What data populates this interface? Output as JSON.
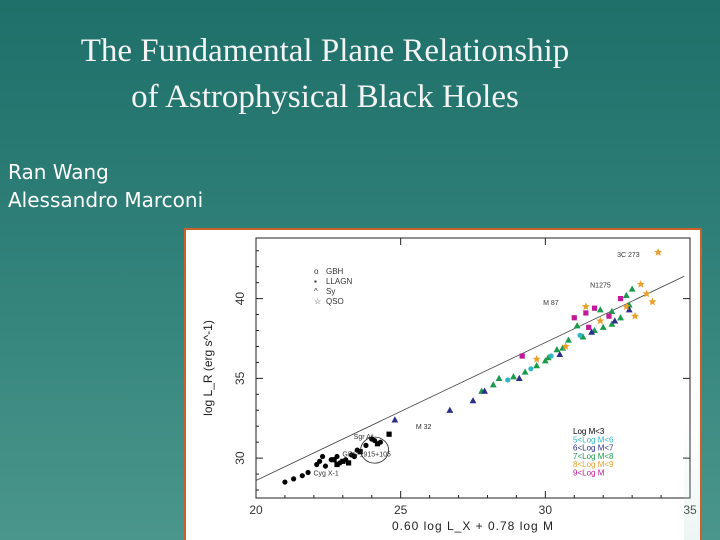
{
  "slide": {
    "title_line1": "The Fundamental Plane Relationship",
    "title_line2": "of Astrophysical Black Holes",
    "author1": "Ran Wang",
    "author2": "Alessandro Marconi"
  },
  "chart_data": {
    "type": "scatter",
    "xlabel": "0.60 log L_X + 0.78 log M",
    "ylabel": "log L_R (erg s^-1)",
    "xlim": [
      20,
      35
    ],
    "ylim": [
      27.5,
      43.8
    ],
    "xticks": [
      "20",
      "25",
      "30",
      "35"
    ],
    "yticks": [
      "30",
      "35",
      "40"
    ],
    "fit_line": {
      "x": [
        20,
        34.8
      ],
      "y": [
        28.6,
        41.4
      ]
    },
    "legend_types": [
      "GBH",
      "LLAGN",
      "Sy",
      "QSO"
    ],
    "legend_mass": [
      {
        "label": "Log M<3",
        "color": "#000000"
      },
      {
        "label": "5<Log M<6",
        "color": "#2fb7c4"
      },
      {
        "label": "6<Log M<7",
        "color": "#2c2f8a"
      },
      {
        "label": "7<Log M<8",
        "color": "#1a9a4a"
      },
      {
        "label": "8<Log M<9",
        "color": "#e8a02a"
      },
      {
        "label": "9<Log M",
        "color": "#c2189a"
      }
    ],
    "annotations": [
      {
        "text": "3C 273",
        "x": 33.4,
        "y": 42.8
      },
      {
        "text": "N1275",
        "x": 32.4,
        "y": 40.9
      },
      {
        "text": "M 87",
        "x": 30.6,
        "y": 39.8
      },
      {
        "text": "M 32",
        "x": 26.2,
        "y": 32.0
      },
      {
        "text": "Sgr A*",
        "x": 24.2,
        "y": 31.4
      },
      {
        "text": "GRS 1915+105",
        "x": 24.8,
        "y": 30.3
      },
      {
        "text": "Cyg X-1",
        "x": 23.0,
        "y": 29.1
      }
    ],
    "series": [
      {
        "name": "GBH",
        "marker": "circle",
        "color": "#000000",
        "points": [
          [
            21.0,
            28.5
          ],
          [
            21.3,
            28.7
          ],
          [
            21.6,
            28.9
          ],
          [
            21.8,
            29.1
          ],
          [
            22.1,
            29.6
          ],
          [
            22.2,
            29.8
          ],
          [
            22.3,
            30.1
          ],
          [
            22.6,
            29.9
          ],
          [
            22.8,
            30.1
          ],
          [
            22.4,
            29.5
          ],
          [
            23.3,
            30.2
          ],
          [
            23.5,
            30.5
          ],
          [
            23.8,
            30.8
          ],
          [
            24.1,
            31.1
          ],
          [
            24.3,
            31.0
          ],
          [
            24.0,
            31.2
          ],
          [
            23.4,
            30.1
          ],
          [
            23.1,
            29.9
          ],
          [
            22.9,
            29.7
          ]
        ]
      },
      {
        "name": "LLAGN",
        "marker": "square",
        "color": "#000000",
        "points": [
          [
            22.8,
            29.6
          ],
          [
            23.0,
            29.8
          ],
          [
            23.2,
            29.7
          ],
          [
            22.7,
            29.9
          ],
          [
            23.6,
            30.4
          ],
          [
            24.6,
            31.5
          ],
          [
            24.2,
            30.9
          ]
        ]
      },
      {
        "name": "Sy",
        "marker": "triangle",
        "color": "#1a9a4a",
        "points": [
          [
            27.8,
            34.2
          ],
          [
            28.2,
            34.6
          ],
          [
            28.9,
            35.1
          ],
          [
            29.3,
            35.4
          ],
          [
            29.7,
            35.8
          ],
          [
            30.0,
            36.1
          ],
          [
            30.4,
            36.8
          ],
          [
            30.8,
            37.4
          ],
          [
            31.3,
            37.6
          ],
          [
            31.7,
            38.0
          ],
          [
            31.1,
            38.3
          ],
          [
            32.0,
            38.2
          ],
          [
            32.3,
            38.4
          ],
          [
            32.6,
            38.8
          ],
          [
            31.9,
            39.3
          ],
          [
            32.3,
            39.2
          ],
          [
            32.8,
            40.2
          ],
          [
            33.0,
            40.6
          ],
          [
            32.9,
            39.6
          ],
          [
            30.6,
            36.9
          ],
          [
            30.1,
            36.3
          ],
          [
            28.4,
            35.0
          ]
        ]
      },
      {
        "name": "Sy-blue",
        "marker": "triangle",
        "color": "#2c2f8a",
        "points": [
          [
            27.5,
            33.6
          ],
          [
            27.9,
            34.2
          ],
          [
            29.1,
            35.0
          ],
          [
            30.5,
            36.5
          ],
          [
            31.6,
            37.9
          ],
          [
            32.4,
            38.6
          ],
          [
            32.9,
            39.3
          ],
          [
            24.8,
            32.4
          ],
          [
            26.7,
            33.0
          ]
        ]
      },
      {
        "name": "Sy-magenta",
        "marker": "square",
        "color": "#c2189a",
        "points": [
          [
            31.0,
            38.8
          ],
          [
            31.4,
            39.1
          ],
          [
            31.7,
            39.4
          ],
          [
            32.2,
            38.9
          ],
          [
            31.5,
            38.2
          ],
          [
            32.6,
            40.0
          ],
          [
            29.2,
            36.4
          ]
        ]
      },
      {
        "name": "Sy-cyan",
        "marker": "circle",
        "color": "#2fb7c4",
        "points": [
          [
            28.7,
            34.9
          ],
          [
            29.5,
            35.6
          ],
          [
            30.2,
            36.4
          ],
          [
            31.2,
            37.7
          ]
        ]
      },
      {
        "name": "QSO",
        "marker": "star",
        "color": "#e8a02a",
        "points": [
          [
            33.9,
            42.9
          ],
          [
            33.3,
            40.9
          ],
          [
            33.5,
            40.3
          ],
          [
            33.7,
            39.8
          ],
          [
            32.8,
            39.5
          ],
          [
            31.9,
            38.6
          ],
          [
            33.1,
            38.9
          ],
          [
            30.7,
            37.0
          ],
          [
            29.7,
            36.2
          ],
          [
            31.4,
            39.5
          ]
        ]
      }
    ]
  }
}
